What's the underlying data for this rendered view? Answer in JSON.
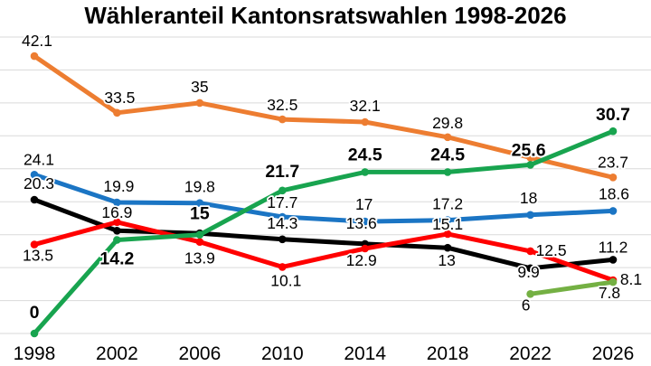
{
  "chart_data": {
    "type": "line",
    "title": "Wähleranteil Kantonsratswahlen 1998-2026",
    "x_labels": [
      "1998",
      "2002",
      "2006",
      "2010",
      "2014",
      "2018",
      "2022",
      "2026"
    ],
    "ylim": [
      0,
      45
    ],
    "grid_step": 5,
    "grid": true,
    "legend": "none",
    "background_color": "#FFFFFF",
    "gridline_color": "#DADADA",
    "label_color": "#000000",
    "series": [
      {
        "name": "orange-line",
        "color": "#ED7D31",
        "bold_labels": false,
        "values": [
          42.1,
          33.5,
          35,
          32.5,
          32.1,
          29.8,
          26.7,
          23.7
        ],
        "point_labels": [
          "42.1",
          "33.5",
          "35",
          "32.5",
          "32.1",
          "29.8",
          "",
          "23.7"
        ],
        "label_offsets": [
          [
            3,
            -11
          ],
          [
            3,
            -11
          ],
          [
            0,
            -12
          ],
          [
            0,
            -10
          ],
          [
            0,
            -12
          ],
          [
            0,
            -10
          ],
          [
            0,
            0
          ],
          [
            0,
            -11
          ]
        ]
      },
      {
        "name": "blue-line",
        "color": "#1B75C4",
        "bold_labels": false,
        "values": [
          24.1,
          19.9,
          19.8,
          17.7,
          17,
          17.2,
          18,
          18.6
        ],
        "point_labels": [
          "24.1",
          "19.9",
          "19.8",
          "17.7",
          "17",
          "17.2",
          "18",
          "18.6"
        ],
        "label_offsets": [
          [
            5,
            -11
          ],
          [
            2,
            -12
          ],
          [
            0,
            -12
          ],
          [
            0,
            -10
          ],
          [
            -1,
            -13
          ],
          [
            0,
            -12
          ],
          [
            -2,
            -13
          ],
          [
            1,
            -13
          ]
        ]
      },
      {
        "name": "black-line",
        "color": "#000000",
        "bold_labels": false,
        "values": [
          20.3,
          15.6,
          15.2,
          14.3,
          13.6,
          13,
          9.9,
          11.2
        ],
        "point_labels": [
          "20.3",
          "",
          "",
          "14.3",
          "13.6",
          "13",
          "9.9",
          "11.2"
        ],
        "label_offsets": [
          [
            5,
            -12
          ],
          [
            0,
            0
          ],
          [
            0,
            0
          ],
          [
            0,
            -12
          ],
          [
            -4,
            -17
          ],
          [
            -1,
            20
          ],
          [
            -2,
            10
          ],
          [
            0,
            -8
          ]
        ]
      },
      {
        "name": "red-line",
        "color": "#FF0000",
        "bold_labels": false,
        "values": [
          13.5,
          16.9,
          13.9,
          10.1,
          12.9,
          15.1,
          12.5,
          8.1
        ],
        "point_labels": [
          "13.5",
          "16.9",
          "13.9",
          "10.1",
          "12.9",
          "15.1",
          "12.5",
          "8.1"
        ],
        "label_offsets": [
          [
            4,
            18
          ],
          [
            0,
            -5
          ],
          [
            0,
            24
          ],
          [
            4,
            21
          ],
          [
            -4,
            19
          ],
          [
            0,
            -5
          ],
          [
            23,
            5
          ],
          [
            20,
            5
          ]
        ]
      },
      {
        "name": "green-line",
        "color": "#18A44F",
        "bold_labels": true,
        "values": [
          0,
          14.2,
          15,
          21.7,
          24.5,
          24.5,
          25.6,
          30.7
        ],
        "point_labels": [
          "0",
          "14.2",
          "15",
          "21.7",
          "24.5",
          "24.5",
          "25.6",
          "30.7"
        ],
        "label_offsets": [
          [
            0,
            -17
          ],
          [
            0,
            27
          ],
          [
            0,
            -17
          ],
          [
            0,
            -15
          ],
          [
            0,
            -13
          ],
          [
            0,
            -13
          ],
          [
            -2,
            -10
          ],
          [
            0,
            -12
          ]
        ]
      },
      {
        "name": "olive-line",
        "color": "#74B043",
        "bold_labels": false,
        "values": [
          null,
          null,
          null,
          null,
          null,
          null,
          6,
          7.8
        ],
        "point_labels": [
          "",
          "",
          "",
          "",
          "",
          "",
          "6",
          "7.8"
        ],
        "label_offsets": [
          [
            0,
            0
          ],
          [
            0,
            0
          ],
          [
            0,
            0
          ],
          [
            0,
            0
          ],
          [
            0,
            0
          ],
          [
            0,
            0
          ],
          [
            -5,
            18
          ],
          [
            -4,
            18
          ]
        ]
      }
    ]
  }
}
